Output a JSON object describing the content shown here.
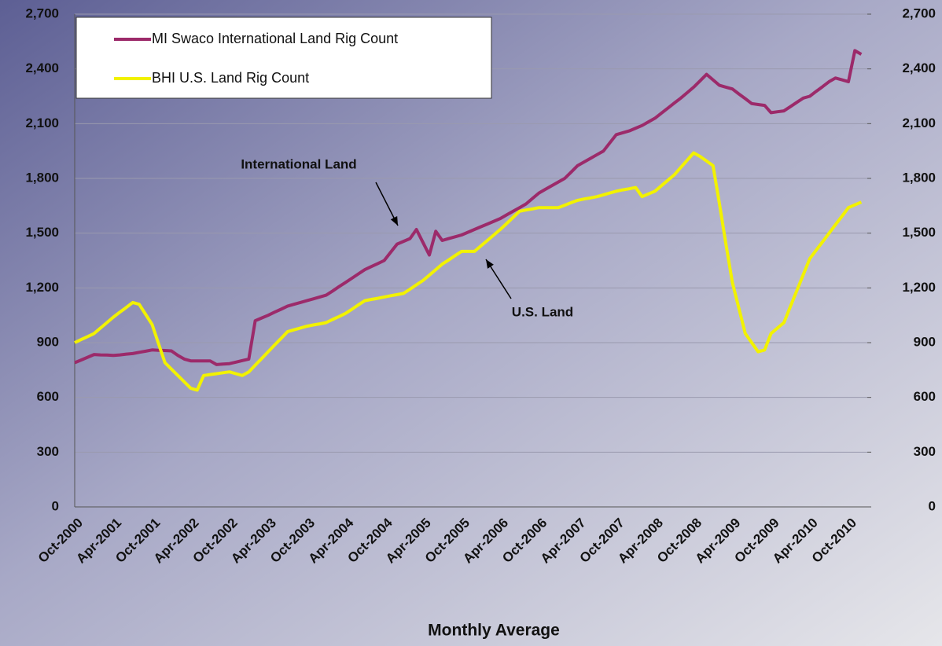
{
  "chart_data": {
    "type": "line",
    "xlabel": "Monthly Average",
    "categories": [
      "Oct-2000",
      null,
      null,
      null,
      null,
      null,
      "Apr-2001",
      null,
      null,
      null,
      null,
      null,
      "Oct-2001",
      null,
      null,
      null,
      null,
      null,
      "Apr-2002",
      null,
      null,
      null,
      null,
      null,
      "Oct-2002",
      null,
      null,
      null,
      null,
      null,
      "Apr-2003",
      null,
      null,
      null,
      null,
      null,
      "Oct-2003",
      null,
      null,
      null,
      null,
      null,
      "Apr-2004",
      null,
      null,
      null,
      null,
      null,
      "Oct-2004",
      null,
      null,
      null,
      null,
      null,
      "Apr-2005",
      null,
      null,
      null,
      null,
      null,
      "Oct-2005",
      null,
      null,
      null,
      null,
      null,
      "Apr-2006",
      null,
      null,
      null,
      null,
      null,
      "Oct-2006",
      null,
      null,
      null,
      null,
      null,
      "Apr-2007",
      null,
      null,
      null,
      null,
      null,
      "Oct-2007",
      null,
      null,
      null,
      null,
      null,
      "Apr-2008",
      null,
      null,
      null,
      null,
      null,
      "Oct-2008",
      null,
      null,
      null,
      null,
      null,
      "Apr-2009",
      null,
      null,
      null,
      null,
      null,
      "Oct-2009",
      null,
      null,
      null,
      null,
      null,
      "Apr-2010",
      null,
      null,
      null,
      null,
      null,
      "Oct-2010",
      null,
      null
    ],
    "series": [
      {
        "name": "MI Swaco International Land Rig Count",
        "color": "#9c2a6a",
        "values": [
          790,
          805,
          820,
          835,
          833,
          832,
          830,
          833,
          837,
          840,
          847,
          853,
          860,
          858,
          857,
          855,
          830,
          810,
          800,
          800,
          800,
          800,
          780,
          783,
          785,
          793,
          802,
          810,
          1020,
          1035,
          1050,
          1067,
          1083,
          1100,
          1110,
          1120,
          1130,
          1140,
          1150,
          1160,
          1183,
          1207,
          1230,
          1253,
          1277,
          1300,
          1317,
          1333,
          1350,
          1395,
          1440,
          1455,
          1470,
          1520,
          1450,
          1380,
          1510,
          1460,
          1470,
          1480,
          1490,
          1505,
          1520,
          1535,
          1550,
          1565,
          1580,
          1600,
          1620,
          1640,
          1660,
          1690,
          1720,
          1740,
          1760,
          1780,
          1800,
          1835,
          1870,
          1890,
          1910,
          1930,
          1950,
          1995,
          2040,
          2050,
          2060,
          2075,
          2090,
          2110,
          2130,
          2158,
          2185,
          2213,
          2240,
          2270,
          2300,
          2335,
          2370,
          2340,
          2310,
          2300,
          2290,
          2263,
          2237,
          2210,
          2205,
          2200,
          2160,
          2165,
          2170,
          2193,
          2217,
          2240,
          2250,
          2277,
          2303,
          2330,
          2350,
          2340,
          2330,
          2500,
          2480
        ]
      },
      {
        "name": "BHI U.S. Land Rig Count",
        "color": "#f2f200",
        "values": [
          900,
          917,
          933,
          950,
          980,
          1010,
          1040,
          1067,
          1093,
          1120,
          1110,
          1055,
          1000,
          895,
          790,
          755,
          720,
          685,
          650,
          640,
          720,
          725,
          730,
          735,
          740,
          730,
          720,
          740,
          777,
          813,
          850,
          887,
          923,
          960,
          970,
          980,
          990,
          997,
          1003,
          1010,
          1027,
          1043,
          1060,
          1083,
          1107,
          1130,
          1137,
          1143,
          1150,
          1157,
          1163,
          1170,
          1193,
          1217,
          1240,
          1270,
          1300,
          1330,
          1353,
          1377,
          1400,
          1400,
          1400,
          1430,
          1460,
          1490,
          1520,
          1553,
          1587,
          1620,
          1627,
          1633,
          1640,
          1640,
          1640,
          1640,
          1653,
          1667,
          1680,
          1687,
          1693,
          1700,
          1710,
          1720,
          1730,
          1737,
          1743,
          1750,
          1700,
          1715,
          1730,
          1760,
          1790,
          1820,
          1860,
          1900,
          1940,
          1920,
          1895,
          1870,
          1660,
          1440,
          1230,
          1090,
          950,
          900,
          850,
          860,
          950,
          980,
          1010,
          1098,
          1185,
          1273,
          1360,
          1407,
          1453,
          1500,
          1547,
          1593,
          1640,
          1655,
          1670
        ]
      }
    ],
    "ylim": [
      0,
      2700
    ],
    "yticks": [
      0,
      300,
      600,
      900,
      {
        "value": 1200,
        "label": "1,200"
      },
      {
        "value": 1500,
        "label": "1,500"
      },
      {
        "value": 1800,
        "label": "1,800"
      },
      {
        "value": 2100,
        "label": "2,100"
      },
      {
        "value": 2400,
        "label": "2,400"
      },
      {
        "value": 2700,
        "label": "2,700"
      }
    ],
    "y2lim": [
      0,
      2700
    ],
    "y2ticks": [
      0,
      300,
      600,
      900,
      {
        "value": 1200,
        "label": "1,200"
      },
      {
        "value": 1500,
        "label": "1,500"
      },
      {
        "value": 1800,
        "label": "1,800"
      },
      {
        "value": 2100,
        "label": "2,100"
      },
      {
        "value": 2400,
        "label": "2,400"
      },
      {
        "value": 2700,
        "label": "2,700"
      }
    ],
    "grid": true,
    "legend": "upper left",
    "annotations": [
      {
        "text": "International Land"
      },
      {
        "text": "U.S. Land"
      }
    ]
  }
}
